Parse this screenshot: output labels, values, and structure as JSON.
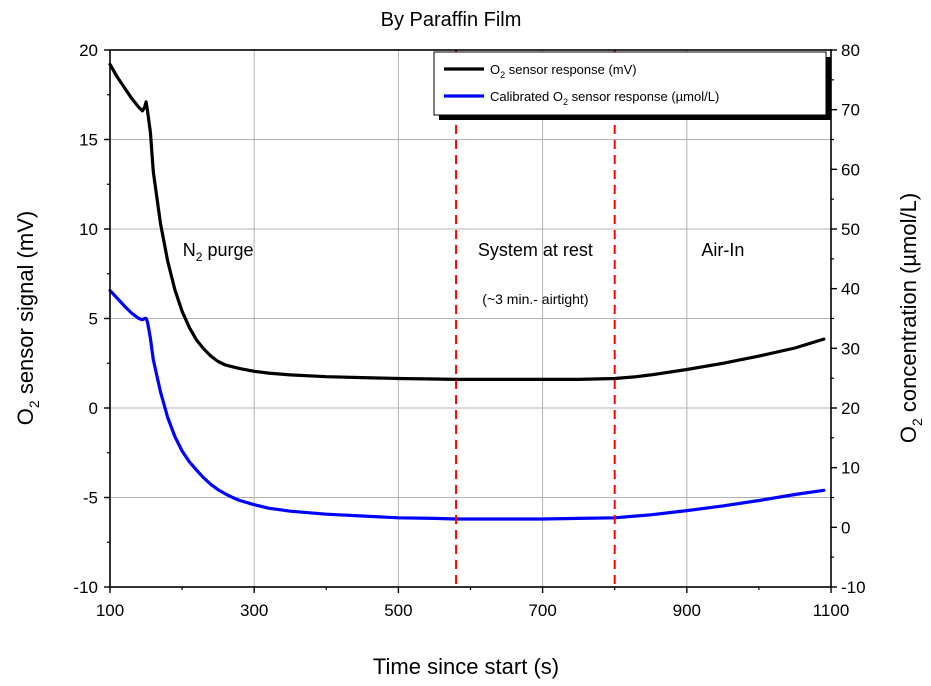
{
  "chart_data": {
    "type": "line",
    "title": "By Paraffin Film",
    "xlabel": "Time since start (s)",
    "ylabel": {
      "prefix": "O",
      "sub": "2",
      "suffix": " sensor signal (mV)"
    },
    "y2label": {
      "prefix": "O",
      "sub": "2",
      "suffix": " concentration (µmol/L)"
    },
    "xlim": [
      100,
      1100
    ],
    "ylim": [
      -10,
      20
    ],
    "y2lim": [
      -10,
      80
    ],
    "x_ticks": [
      100,
      300,
      500,
      700,
      900,
      1100
    ],
    "x_tick_labels": [
      "100",
      "300",
      "500",
      "700",
      "900",
      "1100"
    ],
    "y_ticks": [
      -10,
      -5,
      0,
      5,
      10,
      15,
      20
    ],
    "y_tick_labels": [
      "-10",
      "-5",
      "0",
      "5",
      "10",
      "15",
      "20"
    ],
    "y2_ticks": [
      -10,
      0,
      10,
      20,
      30,
      40,
      50,
      60,
      70,
      80
    ],
    "y2_tick_labels": [
      "-10",
      "0",
      "10",
      "20",
      "30",
      "40",
      "50",
      "60",
      "70",
      "80"
    ],
    "grid": true,
    "legend_position": "top-right",
    "series": [
      {
        "name": {
          "prefix": "O",
          "sub": "2",
          "suffix": " sensor response (mV)"
        },
        "color": "#000000",
        "axis": "left",
        "x": [
          100,
          110,
          120,
          130,
          140,
          145,
          148,
          150,
          152,
          156,
          160,
          170,
          180,
          190,
          200,
          210,
          220,
          230,
          240,
          250,
          260,
          270,
          280,
          300,
          320,
          350,
          400,
          450,
          500,
          550,
          580,
          600,
          650,
          700,
          750,
          800,
          830,
          850,
          900,
          950,
          1000,
          1050,
          1090
        ],
        "y": [
          19.2,
          18.5,
          17.9,
          17.3,
          16.8,
          16.6,
          16.8,
          17.1,
          16.6,
          15.4,
          13.2,
          10.3,
          8.2,
          6.6,
          5.4,
          4.5,
          3.8,
          3.3,
          2.9,
          2.6,
          2.4,
          2.3,
          2.2,
          2.05,
          1.95,
          1.85,
          1.75,
          1.7,
          1.65,
          1.62,
          1.6,
          1.6,
          1.6,
          1.6,
          1.6,
          1.65,
          1.75,
          1.85,
          2.15,
          2.5,
          2.9,
          3.35,
          3.85
        ]
      },
      {
        "name": {
          "prefix": "Calibrated O",
          "sub": "2",
          "suffix": " sensor response (µmol/L)"
        },
        "color": "#0000ff",
        "axis": "right",
        "x": [
          100,
          110,
          120,
          130,
          140,
          145,
          148,
          150,
          152,
          156,
          160,
          170,
          180,
          190,
          200,
          210,
          220,
          230,
          240,
          250,
          260,
          270,
          280,
          300,
          320,
          350,
          400,
          450,
          500,
          550,
          580,
          600,
          650,
          700,
          750,
          800,
          830,
          850,
          900,
          950,
          1000,
          1050,
          1090
        ],
        "y": [
          39.7,
          38.4,
          37.1,
          35.9,
          35.0,
          34.8,
          35.0,
          35.0,
          34.4,
          31.7,
          28.1,
          22.7,
          18.4,
          15.2,
          12.8,
          11.0,
          9.6,
          8.3,
          7.2,
          6.3,
          5.6,
          5.0,
          4.5,
          3.8,
          3.2,
          2.7,
          2.2,
          1.9,
          1.6,
          1.5,
          1.4,
          1.4,
          1.4,
          1.4,
          1.5,
          1.6,
          1.9,
          2.1,
          2.8,
          3.6,
          4.5,
          5.5,
          6.2
        ]
      }
    ],
    "markers": [
      {
        "type": "vline",
        "x": 580,
        "color": "#ff0000",
        "style": "dashed"
      },
      {
        "type": "vline",
        "x": 800,
        "color": "#ff0000",
        "style": "dashed"
      }
    ],
    "annotations": [
      {
        "id": "n2",
        "prefix": "N",
        "sub": "2",
        "suffix": " purge",
        "x": 250,
        "y": 8.5
      },
      {
        "id": "rest",
        "text": "System at rest",
        "x": 690,
        "y": 8.5
      },
      {
        "id": "airtight",
        "text": "(~3 min.- airtight)",
        "x": 690,
        "y": 5.8
      },
      {
        "id": "airin",
        "text": "Air-In",
        "x": 950,
        "y": 8.5
      }
    ]
  }
}
